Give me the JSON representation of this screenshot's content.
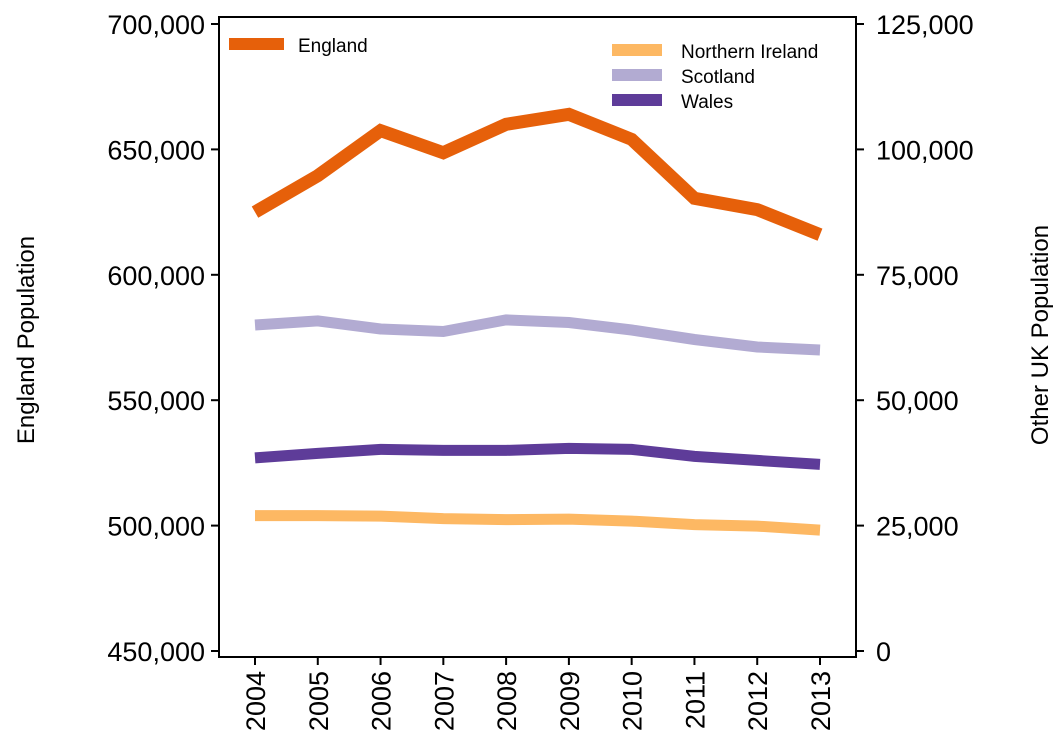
{
  "chart_data": {
    "type": "line",
    "x": [
      "2004",
      "2005",
      "2006",
      "2007",
      "2008",
      "2009",
      "2010",
      "2011",
      "2012",
      "2013"
    ],
    "y_left": {
      "label": "England Population",
      "range": [
        450000,
        700000
      ],
      "ticks": [
        450000,
        500000,
        550000,
        600000,
        650000,
        700000
      ],
      "tick_labels": [
        "450,000",
        "500,000",
        "550,000",
        "600,000",
        "650,000",
        "700,000"
      ]
    },
    "y_right": {
      "label": "Other UK Population",
      "range": [
        0,
        125000
      ],
      "ticks": [
        0,
        25000,
        50000,
        75000,
        100000,
        125000
      ],
      "tick_labels": [
        "0",
        "25,000",
        "50,000",
        "75,000",
        "100,000",
        "125,000"
      ]
    },
    "series": [
      {
        "name": "England",
        "axis": "left",
        "color": "#e6600a",
        "values": [
          625000,
          639500,
          657500,
          648700,
          660000,
          664000,
          654000,
          630500,
          626000,
          616000
        ]
      },
      {
        "name": "Northern Ireland",
        "axis": "right",
        "color": "#fdb863",
        "values": [
          27000,
          27000,
          26900,
          26400,
          26200,
          26300,
          25900,
          25200,
          24900,
          24100
        ]
      },
      {
        "name": "Scotland",
        "axis": "right",
        "color": "#b2abd2",
        "values": [
          65000,
          65800,
          64200,
          63700,
          66000,
          65500,
          64000,
          62100,
          60600,
          60000
        ]
      },
      {
        "name": "Wales",
        "axis": "right",
        "color": "#5e3c99",
        "values": [
          38500,
          39400,
          40200,
          40000,
          40000,
          40400,
          40200,
          38800,
          38000,
          37200
        ]
      }
    ],
    "legend": [
      {
        "label": "England",
        "color": "#e6600a",
        "placement": "top-left"
      },
      {
        "label": "Northern Ireland",
        "color": "#fdb863",
        "placement": "top-right"
      },
      {
        "label": "Scotland",
        "color": "#b2abd2",
        "placement": "top-right"
      },
      {
        "label": "Wales",
        "color": "#5e3c99",
        "placement": "top-right"
      }
    ],
    "grid": false
  }
}
